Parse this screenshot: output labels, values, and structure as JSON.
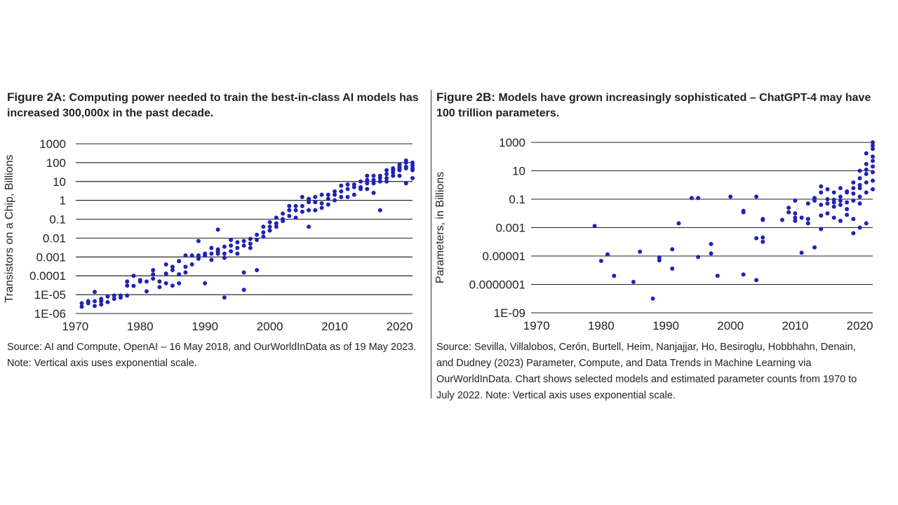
{
  "figure_a": {
    "label": "Figure 2A:",
    "title": "Computing power needed to train the best-in-class AI models has increased 300,000x in the past decade.",
    "source": "Source: AI and Compute, OpenAI – 16 May 2018, and OurWorldInData as of 19 May 2023. Note: Vertical axis uses exponential scale."
  },
  "figure_b": {
    "label": "Figure 2B:",
    "title": "Models have grown increasingly sophisticated – ChatGPT-4 may have 100 trillion parameters.",
    "source": "Source: Sevilla, Villalobos, Cerón, Burtell, Heim, Nanjajjar, Ho, Besiroglu, Hobbhahn, Denain, and Dudney (2023) Parameter, Compute, and Data Trends in Machine Learning via OurWorldInData. Chart shows selected models and estimated parameter counts from 1970 to July 2022. Note: Vertical axis uses exponential scale."
  },
  "colors": {
    "point": "#1f23b4",
    "grid": "#222222"
  },
  "chart_data": [
    {
      "type": "scatter",
      "title": "",
      "xlabel": "",
      "ylabel": "Transistors on a Chip, Billions",
      "y_scale": "log10",
      "xlim": [
        1969,
        2022
      ],
      "ylim": [
        1e-06,
        1000
      ],
      "x_ticks": [
        1970,
        1980,
        1990,
        2000,
        2010,
        2020
      ],
      "x_tick_labels": [
        "1970",
        "1980",
        "1990",
        "2000",
        "2010",
        "2020"
      ],
      "y_ticks": [
        1000,
        100,
        10,
        1,
        0.1,
        0.01,
        0.001,
        0.0001,
        1e-05,
        1e-06
      ],
      "y_tick_labels": [
        "1000",
        "100",
        "10",
        "1",
        "0.1",
        "0.01",
        "0.001",
        "0.0001",
        "1E-05",
        "1E-06"
      ],
      "grid": "horizontal",
      "points": [
        [
          1971,
          2.3e-06
        ],
        [
          1971,
          3.5e-06
        ],
        [
          1972,
          3.5e-06
        ],
        [
          1972,
          4.5e-06
        ],
        [
          1973,
          2.5e-06
        ],
        [
          1973,
          4.5e-06
        ],
        [
          1973,
          1.4e-05
        ],
        [
          1974,
          3e-06
        ],
        [
          1974,
          6e-06
        ],
        [
          1974,
          4.5e-06
        ],
        [
          1975,
          4e-06
        ],
        [
          1975,
          8e-06
        ],
        [
          1976,
          6e-06
        ],
        [
          1976,
          9e-06
        ],
        [
          1977,
          7e-06
        ],
        [
          1977,
          9e-06
        ],
        [
          1978,
          9e-06
        ],
        [
          1978,
          3e-05
        ],
        [
          1978,
          5e-05
        ],
        [
          1979,
          2.9e-05
        ],
        [
          1979,
          0.0001
        ],
        [
          1980,
          6e-05
        ],
        [
          1980,
          5e-05
        ],
        [
          1981,
          1.5e-05
        ],
        [
          1981,
          5e-05
        ],
        [
          1982,
          7e-05
        ],
        [
          1982,
          0.00012
        ],
        [
          1982,
          0.0002
        ],
        [
          1983,
          2.5e-05
        ],
        [
          1983,
          5e-05
        ],
        [
          1984,
          0.00013
        ],
        [
          1984,
          0.0004
        ],
        [
          1984,
          4e-05
        ],
        [
          1985,
          3e-05
        ],
        [
          1985,
          0.0002
        ],
        [
          1985,
          0.0003
        ],
        [
          1986,
          0.00012
        ],
        [
          1986,
          0.0006
        ],
        [
          1986,
          4e-05
        ],
        [
          1987,
          0.0003
        ],
        [
          1987,
          0.00015
        ],
        [
          1987,
          0.0012
        ],
        [
          1988,
          0.0004
        ],
        [
          1988,
          0.0012
        ],
        [
          1989,
          0.0012
        ],
        [
          1989,
          0.0008
        ],
        [
          1989,
          0.007
        ],
        [
          1990,
          0.0015
        ],
        [
          1990,
          4e-05
        ],
        [
          1990,
          0.0012
        ],
        [
          1991,
          0.0015
        ],
        [
          1991,
          0.003
        ],
        [
          1991,
          0.0007
        ],
        [
          1992,
          0.0025
        ],
        [
          1992,
          0.0015
        ],
        [
          1992,
          0.002
        ],
        [
          1992,
          0.028
        ],
        [
          1993,
          0.0009
        ],
        [
          1993,
          0.0035
        ],
        [
          1993,
          7e-06
        ],
        [
          1993,
          0.0015
        ],
        [
          1994,
          0.008
        ],
        [
          1994,
          0.004
        ],
        [
          1994,
          0.002
        ],
        [
          1995,
          0.006
        ],
        [
          1995,
          0.003
        ],
        [
          1995,
          0.0015
        ],
        [
          1996,
          0.007
        ],
        [
          1996,
          0.004
        ],
        [
          1996,
          0.00015
        ],
        [
          1996,
          1.8e-05
        ],
        [
          1997,
          0.009
        ],
        [
          1997,
          0.005
        ],
        [
          1997,
          0.003
        ],
        [
          1998,
          0.008
        ],
        [
          1998,
          0.015
        ],
        [
          1998,
          0.0002
        ],
        [
          1999,
          0.02
        ],
        [
          1999,
          0.04
        ],
        [
          1999,
          0.012
        ],
        [
          2000,
          0.04
        ],
        [
          2000,
          0.025
        ],
        [
          2000,
          0.07
        ],
        [
          2001,
          0.06
        ],
        [
          2001,
          0.12
        ],
        [
          2001,
          0.04
        ],
        [
          2002,
          0.1
        ],
        [
          2002,
          0.2
        ],
        [
          2002,
          0.08
        ],
        [
          2003,
          0.15
        ],
        [
          2003,
          0.3
        ],
        [
          2003,
          0.5
        ],
        [
          2004,
          0.3
        ],
        [
          2004,
          0.5
        ],
        [
          2004,
          0.12
        ],
        [
          2005,
          0.5
        ],
        [
          2005,
          1.5
        ],
        [
          2005,
          0.25
        ],
        [
          2006,
          0.8
        ],
        [
          2006,
          0.3
        ],
        [
          2006,
          1.2
        ],
        [
          2006,
          0.04
        ],
        [
          2007,
          0.8
        ],
        [
          2007,
          0.3
        ],
        [
          2007,
          1.5
        ],
        [
          2008,
          0.7
        ],
        [
          2008,
          2
        ],
        [
          2008,
          0.4
        ],
        [
          2009,
          1.2
        ],
        [
          2009,
          2
        ],
        [
          2009,
          0.6
        ],
        [
          2010,
          2
        ],
        [
          2010,
          1
        ],
        [
          2010,
          3
        ],
        [
          2011,
          3
        ],
        [
          2011,
          1.5
        ],
        [
          2011,
          6
        ],
        [
          2012,
          4
        ],
        [
          2012,
          1.5
        ],
        [
          2012,
          7
        ],
        [
          2013,
          5
        ],
        [
          2013,
          7
        ],
        [
          2013,
          2
        ],
        [
          2014,
          5
        ],
        [
          2014,
          10
        ],
        [
          2014,
          4
        ],
        [
          2015,
          8
        ],
        [
          2015,
          12
        ],
        [
          2015,
          4
        ],
        [
          2015,
          20
        ],
        [
          2016,
          12
        ],
        [
          2016,
          8
        ],
        [
          2016,
          20
        ],
        [
          2016,
          2.5
        ],
        [
          2017,
          15
        ],
        [
          2017,
          20
        ],
        [
          2017,
          10
        ],
        [
          2017,
          0.3
        ],
        [
          2018,
          25
        ],
        [
          2018,
          40
        ],
        [
          2018,
          15
        ],
        [
          2018,
          10
        ],
        [
          2019,
          40
        ],
        [
          2019,
          30
        ],
        [
          2019,
          20
        ],
        [
          2019,
          50
        ],
        [
          2020,
          50
        ],
        [
          2020,
          40
        ],
        [
          2020,
          80
        ],
        [
          2020,
          20
        ],
        [
          2020,
          60
        ],
        [
          2021,
          100
        ],
        [
          2021,
          60
        ],
        [
          2021,
          50
        ],
        [
          2021,
          130
        ],
        [
          2021,
          8
        ],
        [
          2022,
          50
        ],
        [
          2022,
          40
        ],
        [
          2022,
          70
        ],
        [
          2022,
          100
        ],
        [
          2022,
          15
        ]
      ]
    },
    {
      "type": "scatter",
      "title": "",
      "xlabel": "",
      "ylabel": "Parameters, in Billions",
      "y_scale": "log10",
      "xlim": [
        1967,
        2022
      ],
      "ylim": [
        1e-09,
        1000
      ],
      "x_ticks": [
        1970,
        1980,
        1990,
        2000,
        2010,
        2020
      ],
      "x_tick_labels": [
        "1970",
        "1980",
        "1990",
        "2000",
        "2010",
        "2020"
      ],
      "y_ticks": [
        1000,
        10,
        0.1,
        0.001,
        1e-05,
        1e-07,
        1e-09
      ],
      "y_tick_labels": [
        "1000",
        "10",
        "0.1",
        "0.001",
        "0.00001",
        "0.0000001",
        "1E-09"
      ],
      "grid": "horizontal",
      "points": [
        [
          1979,
          0.0013
        ],
        [
          1980,
          4.5e-06
        ],
        [
          1981,
          1.3e-05
        ],
        [
          1982,
          4e-07
        ],
        [
          1986,
          2e-05
        ],
        [
          1985,
          1.5e-07
        ],
        [
          1988,
          1e-08
        ],
        [
          1989,
          5e-06
        ],
        [
          1989,
          8e-06
        ],
        [
          1991,
          3e-05
        ],
        [
          1991,
          1.3e-06
        ],
        [
          1992,
          0.002
        ],
        [
          1994,
          0.12
        ],
        [
          1995,
          0.12
        ],
        [
          1995,
          8.5e-06
        ],
        [
          1997,
          1.5e-05
        ],
        [
          1997,
          7e-05
        ],
        [
          1998,
          4e-07
        ],
        [
          2000,
          0.15
        ],
        [
          2002,
          0.012
        ],
        [
          2002,
          0.015
        ],
        [
          2002,
          5e-07
        ],
        [
          2004,
          0.15
        ],
        [
          2004,
          2e-07
        ],
        [
          2004,
          0.00018
        ],
        [
          2005,
          0.0001
        ],
        [
          2005,
          0.004
        ],
        [
          2005,
          0.0035
        ],
        [
          2005,
          0.0002
        ],
        [
          2008,
          0.0035
        ],
        [
          2009,
          0.012
        ],
        [
          2009,
          0.025
        ],
        [
          2010,
          0.005
        ],
        [
          2010,
          0.003
        ],
        [
          2010,
          0.01
        ],
        [
          2010,
          0.08
        ],
        [
          2011,
          1.7e-05
        ],
        [
          2011,
          0.005
        ],
        [
          2012,
          0.004
        ],
        [
          2012,
          0.05
        ],
        [
          2012,
          0.002
        ],
        [
          2013,
          0.08
        ],
        [
          2013,
          4e-05
        ],
        [
          2013,
          0.12
        ],
        [
          2014,
          0.8
        ],
        [
          2014,
          0.04
        ],
        [
          2014,
          0.3
        ],
        [
          2014,
          0.007
        ],
        [
          2014,
          0.0008
        ],
        [
          2015,
          0.5
        ],
        [
          2015,
          0.1
        ],
        [
          2015,
          0.05
        ],
        [
          2015,
          0.01
        ],
        [
          2016,
          0.09
        ],
        [
          2016,
          0.3
        ],
        [
          2016,
          0.06
        ],
        [
          2016,
          0.03
        ],
        [
          2016,
          0.005
        ],
        [
          2017,
          0.08
        ],
        [
          2017,
          0.6
        ],
        [
          2017,
          0.04
        ],
        [
          2017,
          0.15
        ],
        [
          2017,
          0.003
        ],
        [
          2018,
          0.3
        ],
        [
          2018,
          0.06
        ],
        [
          2018,
          0.008
        ],
        [
          2018,
          0.35
        ],
        [
          2018,
          0.02
        ],
        [
          2019,
          0.6
        ],
        [
          2019,
          0.25
        ],
        [
          2019,
          1.5
        ],
        [
          2019,
          0.08
        ],
        [
          2019,
          0.0004
        ],
        [
          2019,
          0.004
        ],
        [
          2020,
          1
        ],
        [
          2020,
          0.6
        ],
        [
          2020,
          3
        ],
        [
          2020,
          0.15
        ],
        [
          2020,
          0.001
        ],
        [
          2020,
          0.05
        ],
        [
          2020,
          10
        ],
        [
          2021,
          170
        ],
        [
          2021,
          30
        ],
        [
          2021,
          12
        ],
        [
          2021,
          1.5
        ],
        [
          2021,
          0.3
        ],
        [
          2021,
          0.002
        ],
        [
          2021,
          6
        ],
        [
          2022,
          100
        ],
        [
          2022,
          20
        ],
        [
          2022,
          50
        ],
        [
          2022,
          2
        ],
        [
          2022,
          0.5
        ],
        [
          2022,
          8
        ],
        [
          2022,
          1000
        ],
        [
          2022,
          600
        ],
        [
          2022,
          350
        ]
      ]
    }
  ]
}
